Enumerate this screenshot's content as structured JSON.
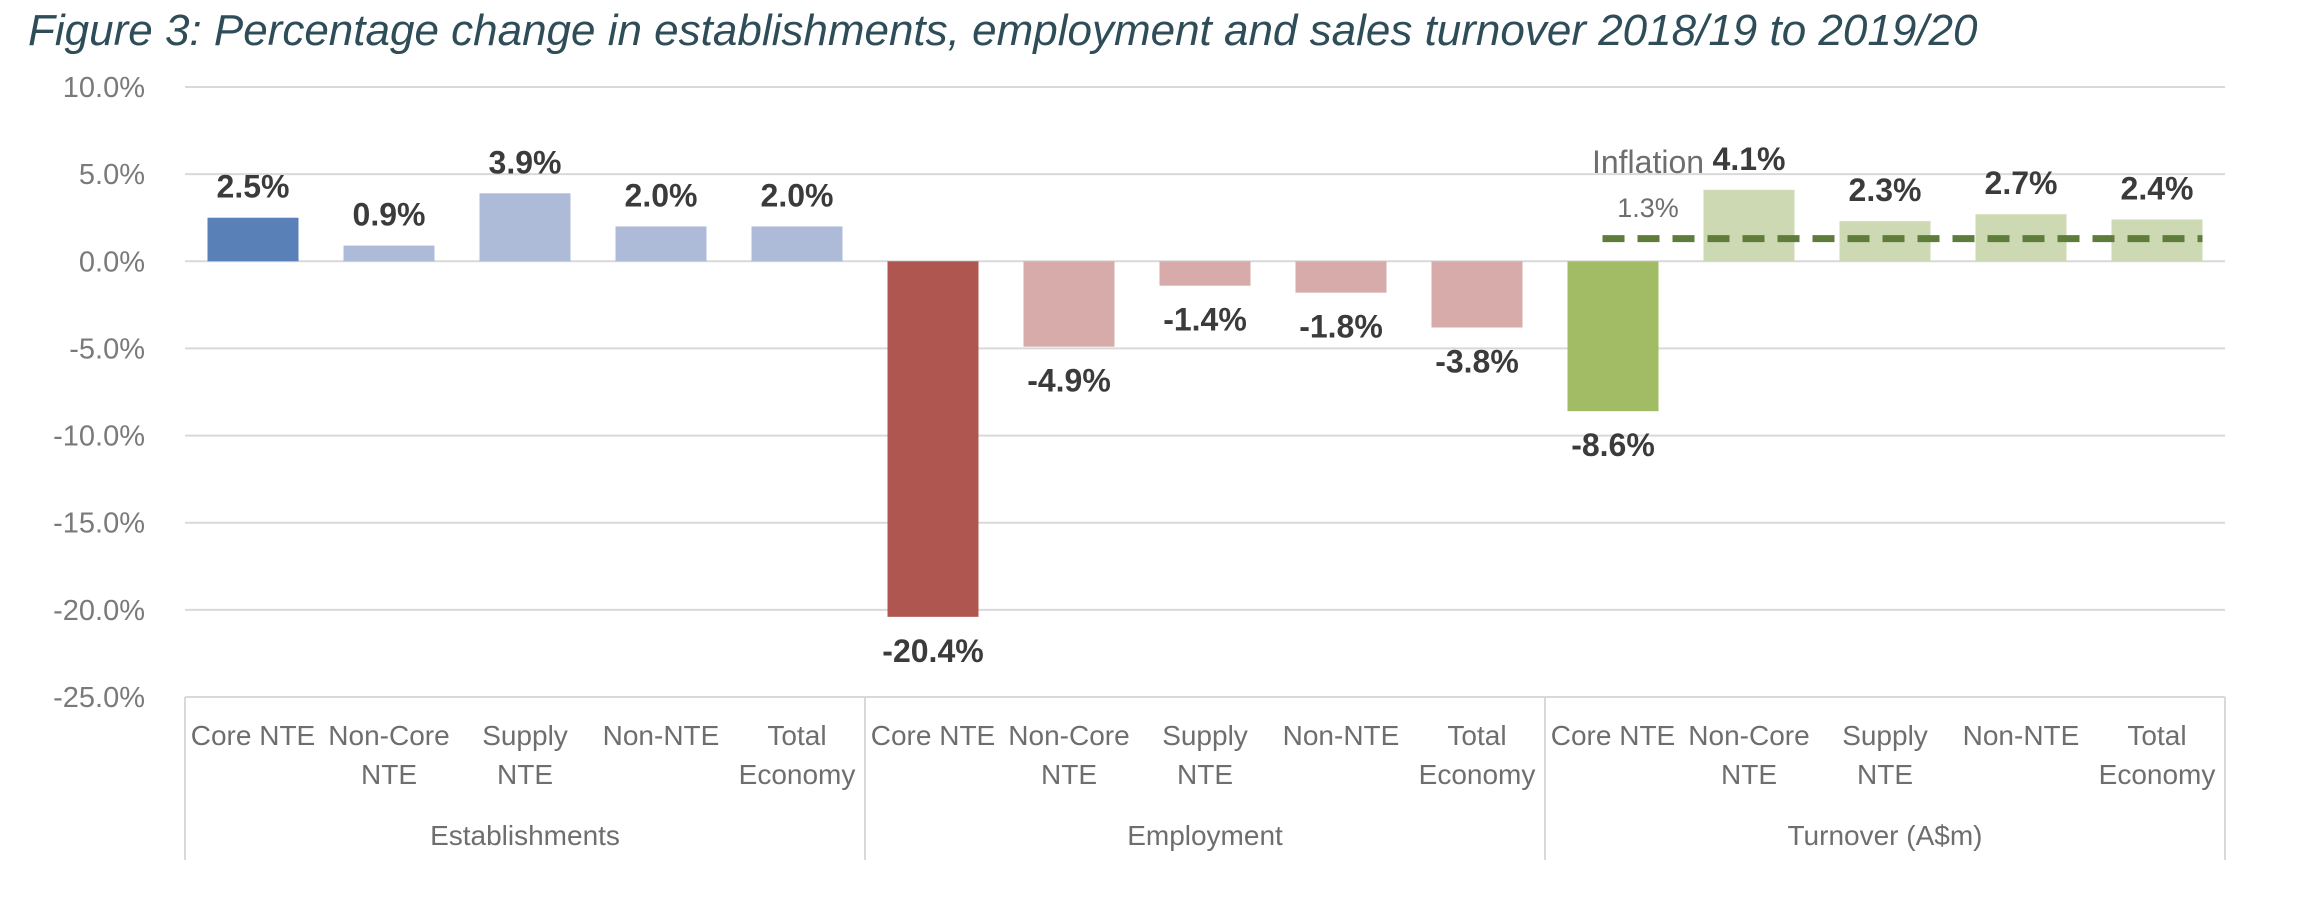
{
  "title": "Figure 3: Percentage change in establishments, employment and sales turnover 2018/19 to 2019/20",
  "chart_data": {
    "type": "bar",
    "ylim": [
      -25,
      10
    ],
    "yticks": [
      10,
      5,
      0,
      -5,
      -10,
      -15,
      -20,
      -25
    ],
    "ytick_labels": [
      "10.0%",
      "5.0%",
      "0.0%",
      "-5.0%",
      "-10.0%",
      "-15.0%",
      "-20.0%",
      "-25.0%"
    ],
    "groups": [
      {
        "name": "Establishments",
        "categories": [
          [
            "Core NTE"
          ],
          [
            "Non-Core",
            "NTE"
          ],
          [
            "Supply",
            "NTE"
          ],
          [
            "Non-NTE"
          ],
          [
            "Total",
            "Economy"
          ]
        ],
        "values": [
          2.5,
          0.9,
          3.9,
          2.0,
          2.0
        ],
        "labels": [
          "2.5%",
          "0.9%",
          "3.9%",
          "2.0%",
          "2.0%"
        ],
        "colors": [
          "#5a80b8",
          "#adbbd8",
          "#adbbd8",
          "#adbbd8",
          "#adbbd8"
        ]
      },
      {
        "name": "Employment",
        "categories": [
          [
            "Core NTE"
          ],
          [
            "Non-Core",
            "NTE"
          ],
          [
            "Supply",
            "NTE"
          ],
          [
            "Non-NTE"
          ],
          [
            "Total",
            "Economy"
          ]
        ],
        "values": [
          -20.4,
          -4.9,
          -1.4,
          -1.8,
          -3.8
        ],
        "labels": [
          "-20.4%",
          "-4.9%",
          "-1.4%",
          "-1.8%",
          "-3.8%"
        ],
        "colors": [
          "#b05650",
          "#d6abaa",
          "#d6abaa",
          "#d6abaa",
          "#d6abaa"
        ]
      },
      {
        "name": "Turnover (A$m)",
        "categories": [
          [
            "Core NTE"
          ],
          [
            "Non-Core",
            "NTE"
          ],
          [
            "Supply",
            "NTE"
          ],
          [
            "Non-NTE"
          ],
          [
            "Total",
            "Economy"
          ]
        ],
        "values": [
          -8.6,
          4.1,
          2.3,
          2.7,
          2.4
        ],
        "labels": [
          "-8.6%",
          "4.1%",
          "2.3%",
          "2.7%",
          "2.4%"
        ],
        "colors": [
          "#a2bc65",
          "#cdd9b3",
          "#cdd9b3",
          "#cdd9b3",
          "#cdd9b3"
        ]
      }
    ],
    "reference_line": {
      "name": "Inflation",
      "value": 1.3,
      "label": "1.3%",
      "group": "Turnover (A$m)",
      "style": "dashed",
      "color": "#5e7d3a"
    },
    "grid": true,
    "legend": "none"
  }
}
